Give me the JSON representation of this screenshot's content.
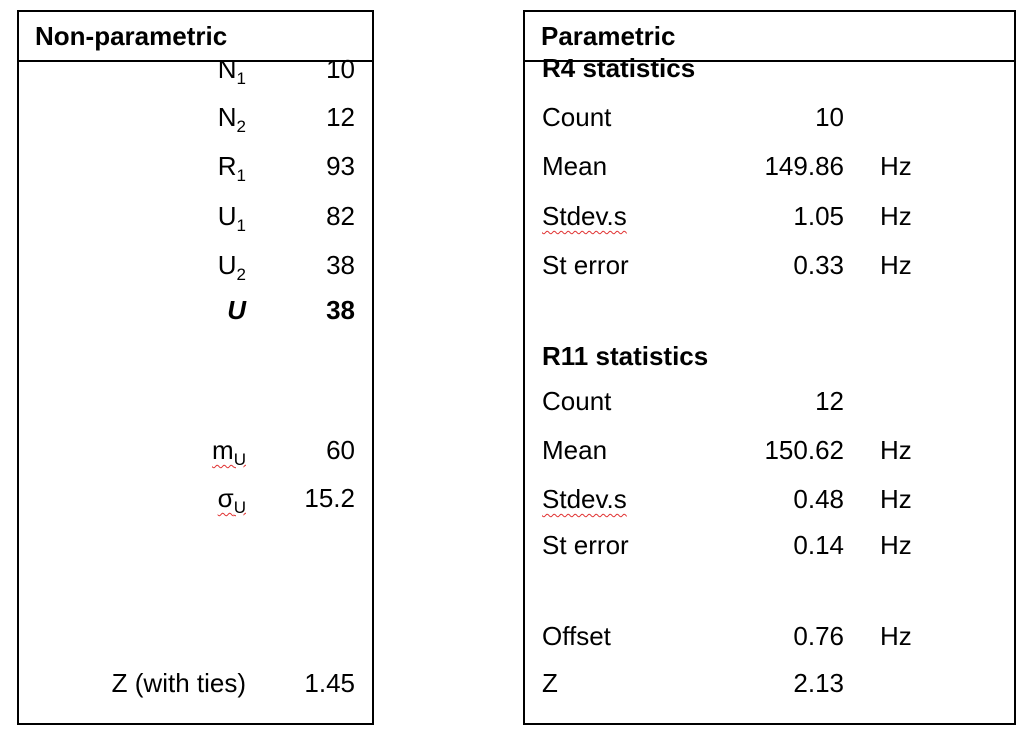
{
  "left": {
    "header": "Non-parametric",
    "rows": [
      {
        "label": {
          "main": "N",
          "sub": "1"
        },
        "value": 10
      },
      {
        "label": {
          "main": "N",
          "sub": "2"
        },
        "value": 12
      },
      {
        "label": {
          "main": "R",
          "sub": "1"
        },
        "value": 93
      },
      {
        "label": {
          "main": "U",
          "sub": "1"
        },
        "value": 82
      },
      {
        "label": {
          "main": "U",
          "sub": "2"
        },
        "value": 38
      },
      {
        "label": "U",
        "value": 38,
        "bold": true
      },
      {
        "label": {
          "main": "m",
          "sub": "U"
        },
        "value": 60,
        "spellcheck": true
      },
      {
        "label": {
          "main": "σ",
          "sub": "U"
        },
        "value": 15.2,
        "spellcheck": true
      },
      {
        "label": "Z (with ties)",
        "value": 1.45
      }
    ]
  },
  "right": {
    "header": "Parametric",
    "rows": [
      {
        "label": "R4 statistics",
        "bold": true
      },
      {
        "label": "Count",
        "value": 10
      },
      {
        "label": "Mean",
        "value": 149.86,
        "unit": "Hz"
      },
      {
        "label": "Stdev.s",
        "value": 1.05,
        "unit": "Hz",
        "spellcheck": true
      },
      {
        "label": "St error",
        "value": 0.33,
        "unit": "Hz"
      },
      {
        "label": "R11 statistics",
        "bold": true
      },
      {
        "label": "Count",
        "value": 12
      },
      {
        "label": "Mean",
        "value": 150.62,
        "unit": "Hz"
      },
      {
        "label": "Stdev.s",
        "value": 0.48,
        "unit": "Hz",
        "spellcheck": true
      },
      {
        "label": "St error",
        "value": 0.14,
        "unit": "Hz"
      },
      {
        "label": "Offset",
        "value": 0.76,
        "unit": "Hz"
      },
      {
        "label": "Z",
        "value": 2.13
      }
    ]
  }
}
